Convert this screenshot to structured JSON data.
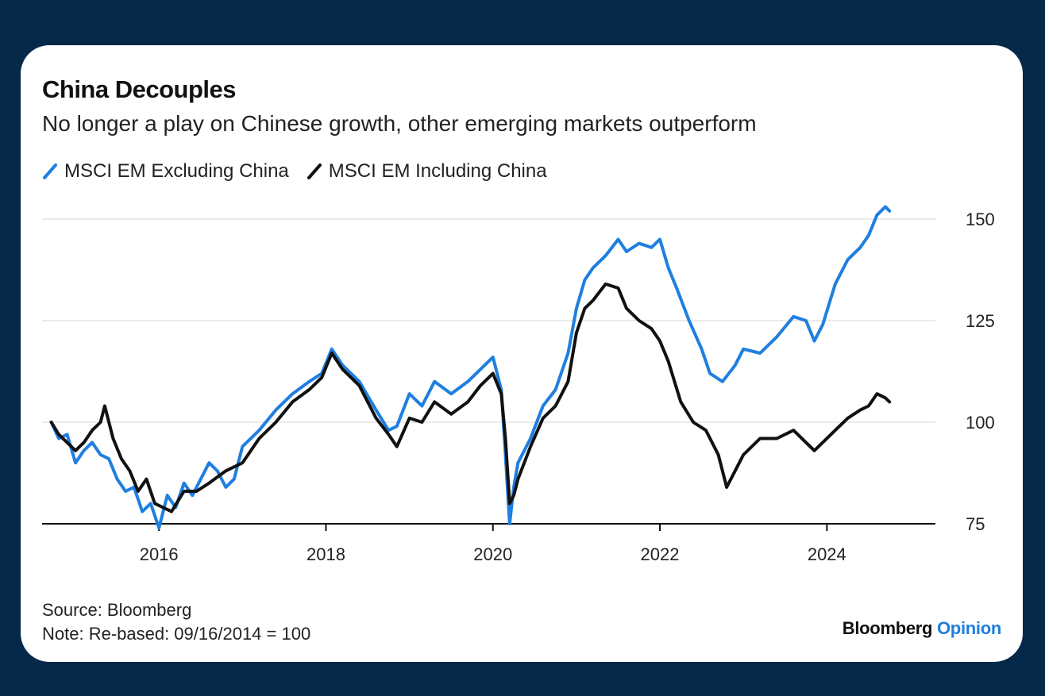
{
  "card": {
    "title": "China Decouples",
    "subtitle": "No longer a play on Chinese growth, other emerging markets outperform",
    "source": "Source: Bloomberg",
    "note": "Note: Re-based: 09/16/2014 = 100",
    "brand_main": "Bloomberg",
    "brand_accent": "Opinion"
  },
  "chart_data": {
    "type": "line",
    "xlabel": "",
    "ylabel": "",
    "xlim": [
      2014.6,
      2025.3
    ],
    "ylim": [
      75,
      150
    ],
    "x_ticks": [
      "2016",
      "2018",
      "2020",
      "2022",
      "2024"
    ],
    "y_ticks": [
      "150",
      "125",
      "100",
      "75"
    ],
    "grid": true,
    "legend_position": "top-left",
    "series": [
      {
        "name": "MSCI EM Excluding China",
        "color": "#1f7fe0",
        "x": [
          2014.71,
          2014.8,
          2014.9,
          2015.0,
          2015.1,
          2015.2,
          2015.3,
          2015.4,
          2015.5,
          2015.6,
          2015.7,
          2015.8,
          2015.9,
          2016.0,
          2016.1,
          2016.2,
          2016.3,
          2016.4,
          2016.5,
          2016.6,
          2016.7,
          2016.8,
          2016.9,
          2017.0,
          2017.2,
          2017.4,
          2017.6,
          2017.8,
          2017.95,
          2018.07,
          2018.2,
          2018.4,
          2018.6,
          2018.75,
          2018.85,
          2019.0,
          2019.15,
          2019.3,
          2019.5,
          2019.7,
          2019.85,
          2020.0,
          2020.1,
          2020.15,
          2020.2,
          2020.25,
          2020.3,
          2020.45,
          2020.6,
          2020.75,
          2020.9,
          2021.0,
          2021.1,
          2021.2,
          2021.35,
          2021.5,
          2021.6,
          2021.75,
          2021.9,
          2022.0,
          2022.1,
          2022.2,
          2022.35,
          2022.5,
          2022.6,
          2022.75,
          2022.9,
          2023.0,
          2023.2,
          2023.4,
          2023.6,
          2023.75,
          2023.85,
          2023.95,
          2024.1,
          2024.25,
          2024.4,
          2024.5,
          2024.6,
          2024.7,
          2024.75
        ],
        "values": [
          100,
          96,
          97,
          90,
          93,
          95,
          92,
          91,
          86,
          83,
          84,
          78,
          80,
          74,
          82,
          79,
          85,
          82,
          86,
          90,
          88,
          84,
          86,
          94,
          98,
          103,
          107,
          110,
          112,
          118,
          114,
          110,
          103,
          98,
          99,
          107,
          104,
          110,
          107,
          110,
          113,
          116,
          108,
          92,
          75,
          84,
          90,
          96,
          104,
          108,
          117,
          128,
          135,
          138,
          141,
          145,
          142,
          144,
          143,
          145,
          138,
          133,
          125,
          118,
          112,
          110,
          114,
          118,
          117,
          121,
          126,
          125,
          120,
          124,
          134,
          140,
          143,
          146,
          151,
          153,
          152
        ]
      },
      {
        "name": "MSCI EM Including China",
        "color": "#111111",
        "x": [
          2014.71,
          2014.8,
          2014.9,
          2015.0,
          2015.1,
          2015.2,
          2015.3,
          2015.35,
          2015.45,
          2015.55,
          2015.65,
          2015.75,
          2015.85,
          2015.95,
          2016.05,
          2016.15,
          2016.3,
          2016.45,
          2016.6,
          2016.8,
          2017.0,
          2017.2,
          2017.4,
          2017.6,
          2017.8,
          2017.95,
          2018.07,
          2018.2,
          2018.4,
          2018.6,
          2018.75,
          2018.85,
          2019.0,
          2019.15,
          2019.3,
          2019.5,
          2019.7,
          2019.85,
          2020.0,
          2020.1,
          2020.15,
          2020.2,
          2020.25,
          2020.3,
          2020.45,
          2020.6,
          2020.75,
          2020.9,
          2021.0,
          2021.1,
          2021.2,
          2021.35,
          2021.5,
          2021.6,
          2021.75,
          2021.9,
          2022.0,
          2022.1,
          2022.25,
          2022.4,
          2022.55,
          2022.7,
          2022.8,
          2022.9,
          2023.0,
          2023.2,
          2023.4,
          2023.6,
          2023.75,
          2023.85,
          2023.95,
          2024.1,
          2024.25,
          2024.4,
          2024.5,
          2024.6,
          2024.7,
          2024.75
        ],
        "values": [
          100,
          97,
          95,
          93,
          95,
          98,
          100,
          104,
          96,
          91,
          88,
          83,
          86,
          80,
          79,
          78,
          83,
          83,
          85,
          88,
          90,
          96,
          100,
          105,
          108,
          111,
          117,
          113,
          109,
          101,
          97,
          94,
          101,
          100,
          105,
          102,
          105,
          109,
          112,
          107,
          96,
          80,
          82,
          86,
          94,
          101,
          104,
          110,
          122,
          128,
          130,
          134,
          133,
          128,
          125,
          123,
          120,
          115,
          105,
          100,
          98,
          92,
          84,
          88,
          92,
          96,
          96,
          98,
          95,
          93,
          95,
          98,
          101,
          103,
          104,
          107,
          106,
          105
        ]
      }
    ]
  }
}
